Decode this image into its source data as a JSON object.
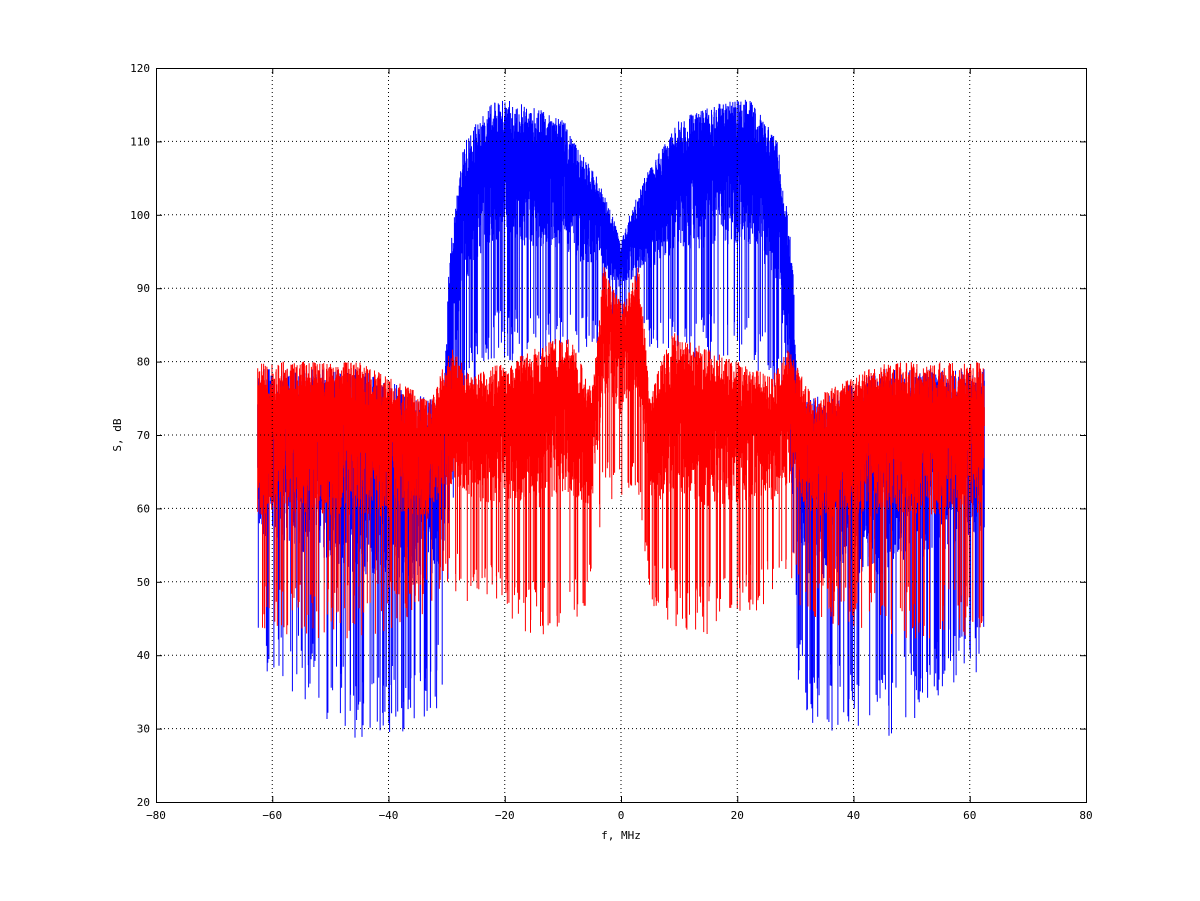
{
  "colors": {
    "blue": "#0000ff",
    "red": "#ff0000",
    "axis": "#000000",
    "grid": "#000000",
    "background": "#ffffff"
  },
  "chart_data": {
    "type": "line",
    "title": "",
    "xlabel": "f, MHz",
    "ylabel": "S, dB",
    "xlim": [
      -80,
      80
    ],
    "ylim": [
      20,
      120
    ],
    "xticks": [
      -80,
      -60,
      -40,
      -20,
      0,
      20,
      40,
      60,
      80
    ],
    "yticks": [
      20,
      30,
      40,
      50,
      60,
      70,
      80,
      90,
      100,
      110,
      120
    ],
    "xtick_labels": [
      "−80",
      "−60",
      "−40",
      "−20",
      "0",
      "20",
      "40",
      "60",
      "80"
    ],
    "ytick_labels": [
      "20",
      "30",
      "40",
      "50",
      "60",
      "70",
      "80",
      "90",
      "100",
      "110",
      "120"
    ],
    "grid": true,
    "legend": "none",
    "f_range_mhz": [
      -62.5,
      62.5
    ],
    "series": [
      {
        "color": "#0000ff",
        "envelope": {
          "f": [
            -62.5,
            -45,
            -33,
            -30.5,
            -29.5,
            -27,
            -22,
            -16,
            -10,
            -4,
            -1,
            0,
            1,
            4,
            10,
            16,
            22,
            27,
            29.5,
            30.5,
            33,
            45,
            62.5
          ],
          "upper": [
            79,
            79,
            75,
            75,
            95,
            110,
            116,
            115,
            113,
            105,
            99,
            96,
            99,
            105,
            113,
            115,
            116,
            110,
            95,
            75,
            75,
            79,
            79
          ],
          "lower": [
            38,
            28,
            30,
            35,
            55,
            75,
            80,
            80,
            80,
            82,
            84,
            85,
            84,
            82,
            80,
            80,
            80,
            75,
            55,
            35,
            30,
            28,
            38
          ]
        }
      },
      {
        "color": "#ff0000",
        "envelope": {
          "f": [
            -62.5,
            -45,
            -33,
            -29,
            -26,
            -20,
            -14,
            -9,
            -5,
            -3,
            0,
            3,
            5,
            9,
            14,
            20,
            26,
            29,
            33,
            45,
            62.5
          ],
          "upper": [
            80,
            80,
            75,
            82,
            78,
            80,
            82,
            84,
            76,
            93,
            88,
            93,
            76,
            84,
            82,
            80,
            78,
            82,
            75,
            80,
            80
          ],
          "lower": [
            42,
            42,
            45,
            48,
            47,
            45,
            42,
            44,
            47,
            62,
            60,
            62,
            47,
            44,
            42,
            45,
            47,
            48,
            45,
            42,
            42
          ]
        }
      }
    ],
    "annotations": []
  }
}
